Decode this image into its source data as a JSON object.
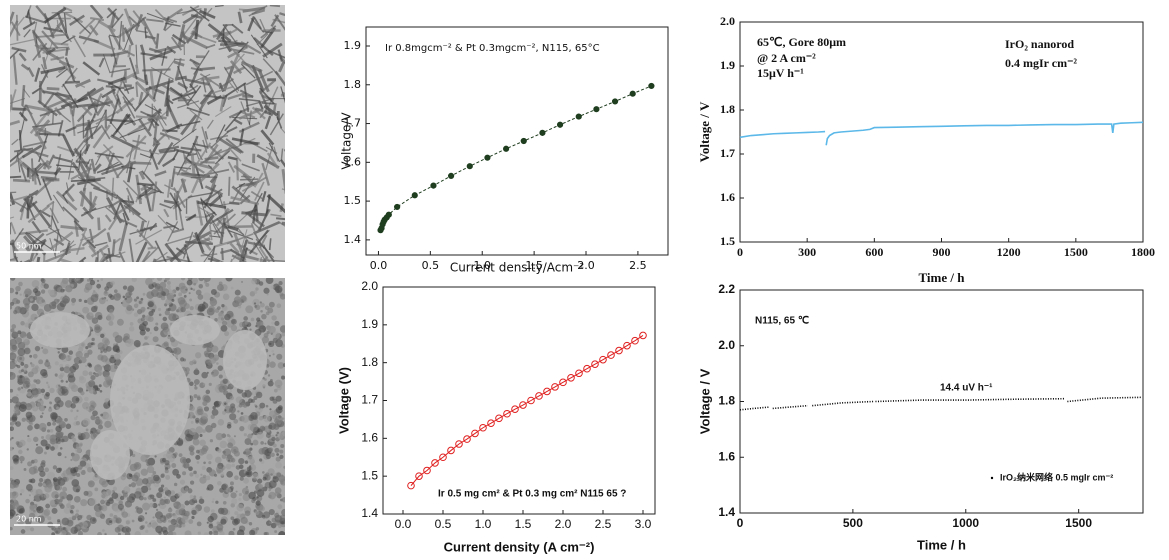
{
  "images": [
    {
      "scale_bar": "50 nm"
    },
    {
      "scale_bar": "20 nm"
    }
  ],
  "chart_data": [
    {
      "type": "line",
      "annotations": [
        "Ir 0.8mgcm⁻² & Pt 0.3mgcm⁻², N115, 65°C"
      ],
      "xlabel": "Current density/Acm⁻²",
      "ylabel": "Voltage/V",
      "x": [
        0.02,
        0.03,
        0.04,
        0.05,
        0.06,
        0.08,
        0.1,
        0.18,
        0.35,
        0.53,
        0.7,
        0.88,
        1.05,
        1.23,
        1.4,
        1.58,
        1.75,
        1.93,
        2.1,
        2.28,
        2.45,
        2.63
      ],
      "series": [
        {
          "color": "#1f3d1f",
          "marker": "filled-circle",
          "linestyle": "dashed",
          "values": [
            1.425,
            1.43,
            1.44,
            1.447,
            1.452,
            1.458,
            1.465,
            1.485,
            1.515,
            1.54,
            1.565,
            1.59,
            1.612,
            1.635,
            1.655,
            1.676,
            1.697,
            1.718,
            1.737,
            1.757,
            1.777,
            1.797
          ]
        }
      ],
      "xlim": [
        -0.12,
        2.79
      ],
      "ylim": [
        1.361,
        1.949
      ],
      "xticks": [
        {
          "value": 0,
          "label": "0.0"
        },
        0.5,
        {
          "value": 1,
          "label": "1.0"
        },
        1.5,
        {
          "value": 2,
          "label": "2.0"
        },
        2.5
      ],
      "yticks": [
        1.4,
        1.5,
        1.6,
        1.7,
        1.8,
        1.9
      ]
    },
    {
      "type": "line",
      "annotations": [
        "65℃, Gore 80μm",
        "@ 2 A cm⁻²",
        "15μV h⁻¹",
        "IrO₂ nanorod",
        "0.4 mgIr cm⁻²"
      ],
      "xlabel": "Time / h",
      "ylabel": "Voltage / V",
      "x": [
        0,
        50,
        100,
        150,
        200,
        250,
        300,
        350,
        380,
        null,
        385,
        390,
        400,
        420,
        450,
        500,
        550,
        580,
        600,
        700,
        800,
        900,
        1000,
        1100,
        1200,
        1300,
        1400,
        1500,
        1600,
        1660,
        1665,
        1670,
        1700,
        1750,
        1800
      ],
      "series": [
        {
          "color": "#5bb8e8",
          "marker": "none",
          "linestyle": "solid",
          "values": [
            1.738,
            1.742,
            1.744,
            1.746,
            1.747,
            1.748,
            1.749,
            1.75,
            1.751,
            null,
            1.72,
            1.735,
            1.742,
            1.748,
            1.75,
            1.752,
            1.754,
            1.756,
            1.76,
            1.761,
            1.762,
            1.763,
            1.764,
            1.765,
            1.765,
            1.766,
            1.767,
            1.767,
            1.768,
            1.768,
            1.748,
            1.768,
            1.77,
            1.771,
            1.772
          ]
        }
      ],
      "xlim": [
        0,
        1800
      ],
      "ylim": [
        1.5,
        2.0
      ],
      "xticks": [
        0,
        300,
        600,
        900,
        1200,
        1500,
        1800
      ],
      "yticks": [
        1.5,
        1.6,
        1.7,
        1.8,
        1.9,
        {
          "value": 2,
          "label": "2.0"
        }
      ]
    },
    {
      "type": "line",
      "annotations": [
        "Ir 0.5 mg cm² & Pt 0.3 mg cm² N115 65 ?"
      ],
      "xlabel": "Current density (A cm⁻²)",
      "ylabel": "Voltage (V)",
      "x": [
        0.1,
        0.2,
        0.3,
        0.4,
        0.5,
        0.6,
        0.7,
        0.8,
        0.9,
        1.0,
        1.1,
        1.2,
        1.3,
        1.4,
        1.5,
        1.6,
        1.7,
        1.8,
        1.9,
        2.0,
        2.1,
        2.2,
        2.3,
        2.4,
        2.5,
        2.6,
        2.7,
        2.8,
        2.9,
        3.0
      ],
      "series": [
        {
          "color": "#e02020",
          "marker": "open-circle",
          "linestyle": "solid",
          "values": [
            1.475,
            1.5,
            1.515,
            1.535,
            1.55,
            1.568,
            1.585,
            1.598,
            1.613,
            1.628,
            1.64,
            1.653,
            1.665,
            1.677,
            1.688,
            1.7,
            1.712,
            1.724,
            1.736,
            1.748,
            1.76,
            1.772,
            1.784,
            1.796,
            1.808,
            1.82,
            1.832,
            1.845,
            1.858,
            1.872
          ]
        }
      ],
      "xlim": [
        -0.25,
        3.15
      ],
      "ylim": [
        1.4,
        2.0
      ],
      "xticks": [
        {
          "value": 0,
          "label": "0.0"
        },
        0.5,
        {
          "value": 1,
          "label": "1.0"
        },
        1.5,
        {
          "value": 2,
          "label": "2.0"
        },
        2.5,
        {
          "value": 3,
          "label": "3.0"
        }
      ],
      "yticks": [
        1.4,
        1.5,
        1.6,
        1.7,
        1.8,
        1.9,
        {
          "value": 2,
          "label": "2.0"
        }
      ]
    },
    {
      "type": "line",
      "annotations": [
        "N115, 65 ℃",
        "14.4 uV h⁻¹"
      ],
      "xlabel": "Time / h",
      "ylabel": "Voltage / V",
      "x": [
        0,
        60,
        130,
        null,
        145,
        220,
        300,
        null,
        320,
        450,
        590,
        null,
        600,
        800,
        1000,
        1200,
        1440,
        null,
        1450,
        1600,
        1780
      ],
      "series": [
        {
          "name": "IrO₂纳米网络 0.5 mgIr cm⁻²",
          "color": "#000000",
          "marker": "none",
          "linestyle": "dotted",
          "values": [
            1.77,
            1.775,
            1.78,
            null,
            1.775,
            1.78,
            1.785,
            null,
            1.785,
            1.795,
            1.8,
            null,
            1.8,
            1.805,
            1.805,
            1.808,
            1.81,
            null,
            1.8,
            1.812,
            1.815
          ]
        }
      ],
      "xlim": [
        0,
        1785
      ],
      "ylim": [
        1.4,
        2.2
      ],
      "xticks": [
        0,
        500,
        1000,
        1500
      ],
      "yticks": [
        1.4,
        1.6,
        1.8,
        {
          "value": 2,
          "label": "2.0"
        },
        2.2
      ]
    }
  ]
}
